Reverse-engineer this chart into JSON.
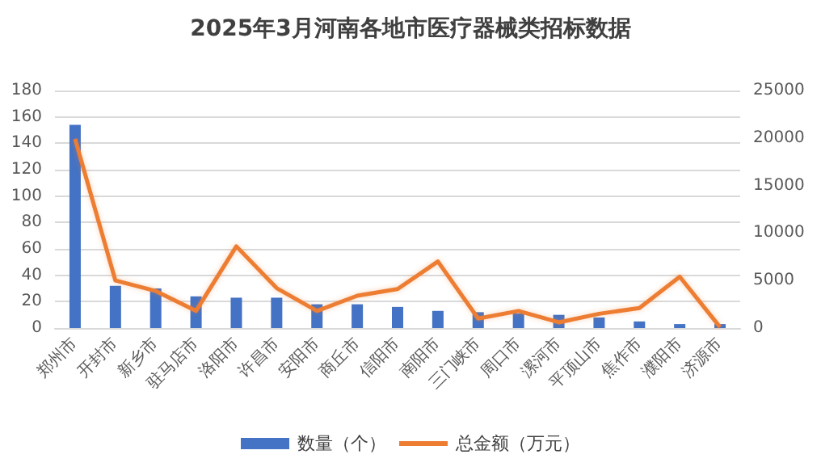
{
  "chart_data": {
    "type": "bar",
    "title": "2025年3月河南各地市医疗器械类招标数据",
    "categories": [
      "郑州市",
      "开封市",
      "新乡市",
      "驻马店市",
      "洛阳市",
      "许昌市",
      "安阳市",
      "商丘市",
      "信阳市",
      "南阳市",
      "三门峡市",
      "周口市",
      "漯河市",
      "平顶山市",
      "焦作市",
      "濮阳市",
      "济源市"
    ],
    "series": [
      {
        "name": "数量（个）",
        "color": "#4472c4",
        "values": [
          154,
          32,
          30,
          24,
          23,
          23,
          18,
          18,
          16,
          13,
          12,
          11,
          10,
          8,
          5,
          3,
          3
        ]
      },
      {
        "name": "总金额（万元）",
        "type": "line",
        "axis": "y2",
        "color": "#ed7d31",
        "values": [
          19900,
          5000,
          3900,
          1800,
          8600,
          4200,
          1800,
          3400,
          4100,
          7000,
          1000,
          1800,
          600,
          1500,
          2100,
          5400,
          100
        ]
      }
    ],
    "ylim": [
      0,
      180
    ],
    "yticks": [
      0,
      20,
      40,
      60,
      80,
      100,
      120,
      140,
      160,
      180
    ],
    "y2lim": [
      0,
      25000
    ],
    "y2ticks": [
      0,
      5000,
      10000,
      15000,
      20000,
      25000
    ],
    "grid": "y",
    "legend": "bottom",
    "marker": "none",
    "line_style": "solid"
  }
}
